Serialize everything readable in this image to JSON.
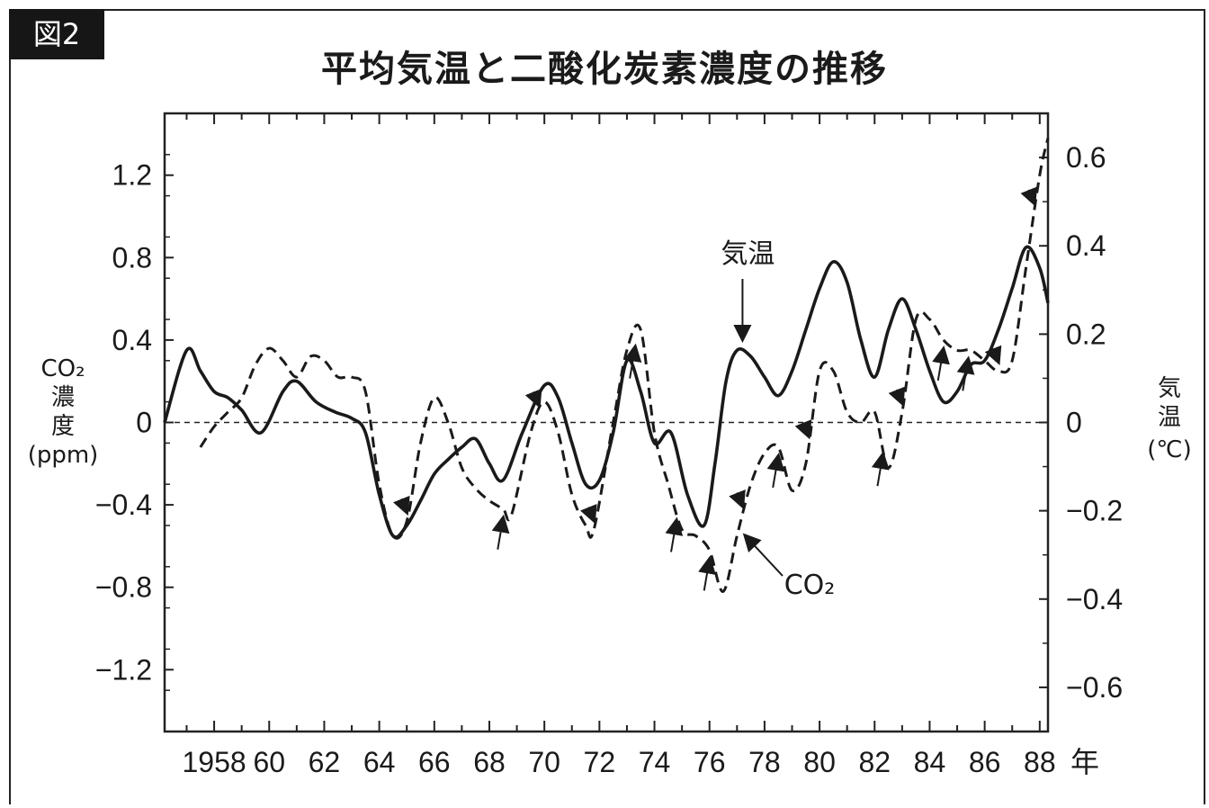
{
  "figure_label": "図2",
  "title": "平均気温と二酸化炭素濃度の推移",
  "chart_data": {
    "type": "line",
    "title": "平均気温と二酸化炭素濃度の推移",
    "x_unit": "年",
    "x_tick_labels": [
      "1958",
      "60",
      "62",
      "64",
      "66",
      "68",
      "70",
      "72",
      "74",
      "76",
      "78",
      "80",
      "82",
      "84",
      "86",
      "88"
    ],
    "x_tick_values": [
      1958,
      1960,
      1962,
      1964,
      1966,
      1968,
      1970,
      1972,
      1974,
      1976,
      1978,
      1980,
      1982,
      1984,
      1986,
      1988
    ],
    "xlim": [
      1956.2,
      1988.3
    ],
    "left_axis": {
      "label_lines": [
        "CO₂",
        "濃",
        "度",
        "(ppm)"
      ],
      "ylim": [
        -1.5,
        1.5
      ],
      "tick_values": [
        1.2,
        0.8,
        0.4,
        0,
        -0.4,
        -0.8,
        -1.2
      ],
      "tick_labels": [
        "1.2",
        "0.8",
        "0.4",
        "0",
        "−0.4",
        "−0.8",
        "−1.2"
      ]
    },
    "right_axis": {
      "label_lines": [
        "気",
        "温",
        "(℃)"
      ],
      "ylim": [
        -0.7,
        0.7
      ],
      "tick_values": [
        0.6,
        0.4,
        0.2,
        0,
        -0.2,
        -0.4,
        -0.6
      ],
      "tick_labels": [
        "0.6",
        "0.4",
        "0.2",
        "0",
        "−0.2",
        "−0.4",
        "−0.6"
      ]
    },
    "zero_line": true,
    "series": [
      {
        "name": "気温",
        "axis": "left",
        "style": "solid",
        "x": [
          1956.2,
          1957.0,
          1957.5,
          1958.0,
          1958.5,
          1959.0,
          1959.7,
          1960.5,
          1961.0,
          1961.7,
          1962.4,
          1963.0,
          1963.5,
          1964.0,
          1964.5,
          1965.0,
          1965.5,
          1966.0,
          1966.5,
          1967.0,
          1967.5,
          1968.0,
          1968.5,
          1969.2,
          1970.0,
          1970.5,
          1971.0,
          1971.5,
          1972.0,
          1972.5,
          1973.0,
          1973.5,
          1974.0,
          1974.6,
          1975.2,
          1975.8,
          1976.2,
          1976.6,
          1977.0,
          1977.5,
          1978.0,
          1978.5,
          1979.0,
          1979.5,
          1980.0,
          1980.5,
          1981.0,
          1981.5,
          1982.0,
          1982.5,
          1983.0,
          1983.5,
          1984.0,
          1984.5,
          1985.0,
          1985.5,
          1986.0,
          1986.5,
          1987.0,
          1987.5,
          1988.0,
          1988.3
        ],
        "y": [
          0.0,
          0.35,
          0.25,
          0.15,
          0.12,
          0.06,
          -0.05,
          0.15,
          0.2,
          0.1,
          0.05,
          0.02,
          -0.05,
          -0.35,
          -0.55,
          -0.5,
          -0.38,
          -0.25,
          -0.18,
          -0.12,
          -0.08,
          -0.2,
          -0.28,
          -0.05,
          0.18,
          0.12,
          -0.1,
          -0.3,
          -0.28,
          -0.05,
          0.3,
          0.15,
          -0.1,
          -0.05,
          -0.35,
          -0.5,
          -0.2,
          0.2,
          0.35,
          0.32,
          0.22,
          0.13,
          0.25,
          0.45,
          0.65,
          0.78,
          0.68,
          0.4,
          0.22,
          0.45,
          0.6,
          0.45,
          0.25,
          0.1,
          0.15,
          0.28,
          0.3,
          0.45,
          0.65,
          0.85,
          0.75,
          0.58
        ]
      },
      {
        "name": "CO₂",
        "axis": "left",
        "style": "dashed",
        "x": [
          1957.5,
          1958.0,
          1958.5,
          1959.0,
          1959.5,
          1960.0,
          1960.5,
          1961.0,
          1961.5,
          1962.0,
          1962.5,
          1963.0,
          1963.5,
          1964.0,
          1964.5,
          1965.0,
          1965.5,
          1966.0,
          1966.5,
          1967.0,
          1967.5,
          1968.0,
          1968.5,
          1968.8,
          1969.5,
          1970.0,
          1970.5,
          1971.0,
          1971.5,
          1971.8,
          1972.5,
          1973.0,
          1973.5,
          1974.0,
          1974.5,
          1975.0,
          1975.5,
          1976.0,
          1976.5,
          1977.0,
          1977.5,
          1978.0,
          1978.5,
          1979.0,
          1979.5,
          1980.0,
          1980.5,
          1981.0,
          1981.5,
          1982.0,
          1982.5,
          1983.0,
          1983.5,
          1984.0,
          1984.5,
          1985.0,
          1985.5,
          1986.0,
          1986.5,
          1987.0,
          1987.5,
          1988.0,
          1988.3
        ],
        "y": [
          -0.12,
          -0.02,
          0.05,
          0.12,
          0.28,
          0.36,
          0.3,
          0.22,
          0.32,
          0.3,
          0.22,
          0.22,
          0.15,
          -0.3,
          -0.55,
          -0.48,
          -0.1,
          0.12,
          0.0,
          -0.22,
          -0.32,
          -0.38,
          -0.42,
          -0.45,
          -0.05,
          0.1,
          -0.05,
          -0.35,
          -0.5,
          -0.52,
          0.0,
          0.35,
          0.45,
          -0.05,
          -0.3,
          -0.52,
          -0.55,
          -0.62,
          -0.82,
          -0.55,
          -0.3,
          -0.15,
          -0.12,
          -0.33,
          -0.2,
          0.25,
          0.25,
          0.05,
          0.0,
          0.05,
          -0.22,
          0.05,
          0.5,
          0.5,
          0.4,
          0.35,
          0.35,
          0.3,
          0.25,
          0.3,
          0.75,
          1.2,
          1.38
        ]
      }
    ],
    "annotations": [
      {
        "text": "気温",
        "series": "気温"
      },
      {
        "text": "CO₂",
        "series": "CO₂"
      }
    ]
  }
}
